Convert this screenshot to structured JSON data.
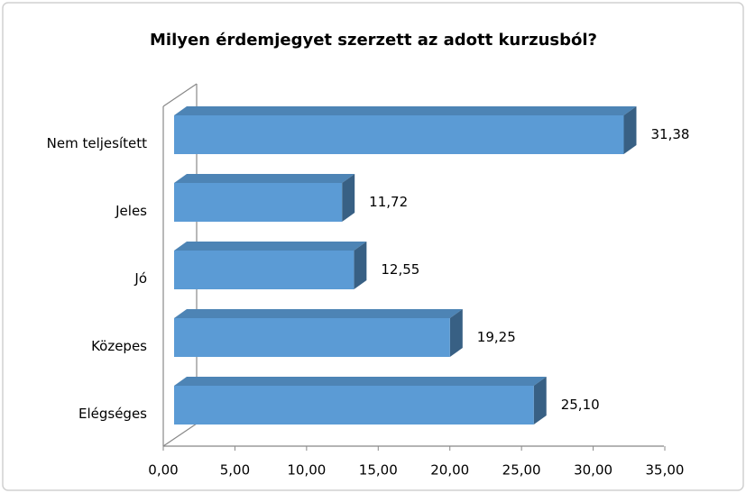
{
  "chart_data": {
    "type": "bar3d_horizontal",
    "title": "Milyen érdemjegyet szerzett az adott kurzusból?",
    "categories": [
      "Nem teljesített",
      "Jeles",
      "Jó",
      "Közepes",
      "Elégséges"
    ],
    "values": [
      31.38,
      11.72,
      12.55,
      19.25,
      25.1
    ],
    "value_labels": [
      "31,38",
      "11,72",
      "12,55",
      "19,25",
      "25,10"
    ],
    "color": "#5b9bd5",
    "xlim": [
      0,
      35
    ],
    "xticks": [
      {
        "value": 0,
        "label": "0,00"
      },
      {
        "value": 5,
        "label": "5,00"
      },
      {
        "value": 10,
        "label": "10,00"
      },
      {
        "value": 15,
        "label": "15,00"
      },
      {
        "value": 20,
        "label": "20,00"
      },
      {
        "value": 25,
        "label": "25,00"
      },
      {
        "value": 30,
        "label": "30,00"
      },
      {
        "value": 35,
        "label": "35,00"
      }
    ]
  }
}
